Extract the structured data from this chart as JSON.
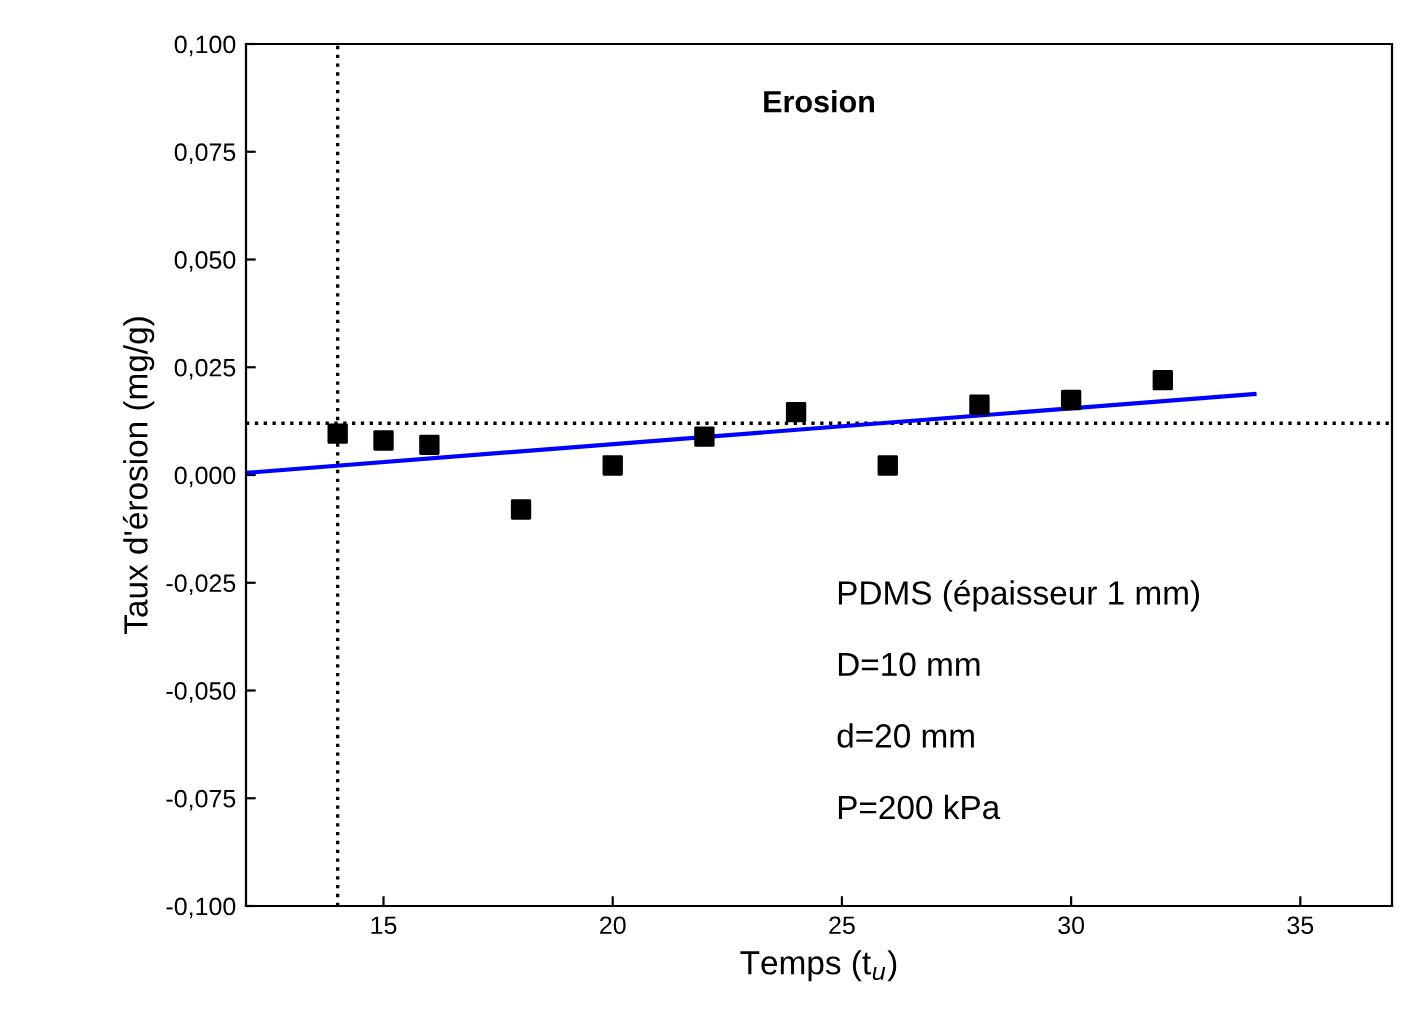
{
  "chart_data": {
    "type": "scatter",
    "title": "Erosion",
    "xlabel": "Temps (t$_{u}$)",
    "ylabel": "Taux d'érosion (mg/g)",
    "xlim": [
      12,
      37
    ],
    "xticks": [
      15,
      20,
      25,
      30,
      35
    ],
    "ylim": [
      -0.1,
      0.1
    ],
    "yticks": [
      {
        "value": -0.1,
        "label": "-0,100"
      },
      {
        "value": -0.075,
        "label": "-0,075"
      },
      {
        "value": -0.05,
        "label": "-0,050"
      },
      {
        "value": -0.025,
        "label": "-0,025"
      },
      {
        "value": 0,
        "label": "0,000"
      },
      {
        "value": 0.025,
        "label": "0,025"
      },
      {
        "value": 0.05,
        "label": "0,050"
      },
      {
        "value": 0.075,
        "label": "0,075"
      },
      {
        "value": 0.1,
        "label": "0,100"
      }
    ],
    "grid": false,
    "series": [
      {
        "marker": "square",
        "color": "#000000",
        "x": [
          14,
          15,
          16,
          18,
          20,
          22,
          24,
          26,
          28,
          30,
          32
        ],
        "values": [
          0.0096,
          0.008,
          0.007,
          -0.008,
          0.0022,
          0.0089,
          0.0146,
          0.0022,
          0.0163,
          0.0174,
          0.022
        ]
      },
      {
        "type": "line",
        "color": "#0000ff",
        "x": [
          12,
          34
        ],
        "values": [
          0.0005,
          0.0188
        ]
      }
    ],
    "ref_lines": [
      {
        "axis": "x",
        "value": 14,
        "color": "#000000",
        "line_style": "dotted"
      },
      {
        "axis": "y",
        "value": 0.012,
        "color": "#000000",
        "line_style": "dotted"
      }
    ],
    "annotations": [
      "PDMS (épaisseur 1 mm)",
      "D=10 mm",
      "d=20 mm",
      "P=200 kPa"
    ]
  }
}
